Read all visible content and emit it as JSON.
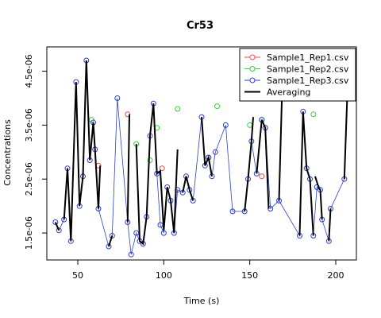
{
  "chart_data": {
    "type": "scatter",
    "title": "Cr53",
    "xlabel": "Time (s)",
    "ylabel": "Concentrations",
    "xlim": [
      32,
      212
    ],
    "ylim": [
      1e-06,
      4.95e-06
    ],
    "x_ticks": [
      50,
      100,
      150,
      200
    ],
    "x_tick_labels": [
      "50",
      "100",
      "150",
      "200"
    ],
    "y_ticks": [
      1.5e-06,
      2.5e-06,
      3.5e-06,
      4.5e-06
    ],
    "y_tick_labels": [
      "1.5e-06",
      "2.5e-06",
      "3.5e-06",
      "4.5e-06"
    ],
    "grid": false,
    "legend_position": "top-right",
    "series": [
      {
        "name": "Sample1_Rep1.csv",
        "color": "#e8474a",
        "marker": "open-circle",
        "points": [
          [
            62,
            2.75e-06
          ],
          [
            79,
            3.7e-06
          ],
          [
            99,
            2.7e-06
          ],
          [
            157,
            2.55e-06
          ],
          [
            159,
            3.45e-06
          ],
          [
            126,
            2.9e-06
          ]
        ]
      },
      {
        "name": "Sample1_Rep2.csv",
        "color": "#39d039",
        "marker": "open-circle",
        "points": [
          [
            58,
            3.6e-06
          ],
          [
            84,
            3.15e-06
          ],
          [
            92,
            2.85e-06
          ],
          [
            96,
            3.45e-06
          ],
          [
            108,
            3.8e-06
          ],
          [
            131,
            3.85e-06
          ],
          [
            150,
            3.5e-06
          ],
          [
            157,
            3.6e-06
          ],
          [
            187,
            3.7e-06
          ]
        ]
      },
      {
        "name": "Sample1_Rep3.csv",
        "color": "#2b3fd0",
        "marker": "open-circle",
        "points": [
          [
            37,
            1.7e-06
          ],
          [
            39,
            1.55e-06
          ],
          [
            42,
            1.75e-06
          ],
          [
            44,
            2.7e-06
          ],
          [
            46,
            1.35e-06
          ],
          [
            49,
            4.3e-06
          ],
          [
            51,
            2e-06
          ],
          [
            53,
            2.55e-06
          ],
          [
            55,
            4.7e-06
          ],
          [
            57,
            2.85e-06
          ],
          [
            59,
            3.55e-06
          ],
          [
            60,
            3.05e-06
          ],
          [
            62,
            1.95e-06
          ],
          [
            68,
            1.25e-06
          ],
          [
            70,
            1.45e-06
          ],
          [
            73,
            4e-06
          ],
          [
            79,
            1.7e-06
          ],
          [
            81,
            1.1e-06
          ],
          [
            84,
            1.5e-06
          ],
          [
            86,
            1.35e-06
          ],
          [
            88,
            1.3e-06
          ],
          [
            90,
            1.8e-06
          ],
          [
            92,
            3.3e-06
          ],
          [
            94,
            3.9e-06
          ],
          [
            96,
            2.6e-06
          ],
          [
            98,
            1.65e-06
          ],
          [
            100,
            1.5e-06
          ],
          [
            102,
            2.35e-06
          ],
          [
            104,
            2.1e-06
          ],
          [
            106,
            1.5e-06
          ],
          [
            108,
            2.3e-06
          ],
          [
            111,
            2.25e-06
          ],
          [
            113,
            2.55e-06
          ],
          [
            115,
            2.3e-06
          ],
          [
            117,
            2.1e-06
          ],
          [
            122,
            3.65e-06
          ],
          [
            124,
            2.75e-06
          ],
          [
            126,
            2.9e-06
          ],
          [
            128,
            2.55e-06
          ],
          [
            130,
            3e-06
          ],
          [
            136,
            3.5e-06
          ],
          [
            140,
            1.9e-06
          ],
          [
            147,
            1.9e-06
          ],
          [
            149,
            2.5e-06
          ],
          [
            151,
            3.2e-06
          ],
          [
            154,
            2.6e-06
          ],
          [
            157,
            3.6e-06
          ],
          [
            159,
            3.45e-06
          ],
          [
            162,
            1.95e-06
          ],
          [
            167,
            2.1e-06
          ],
          [
            179,
            1.45e-06
          ],
          [
            181,
            3.75e-06
          ],
          [
            183,
            2.7e-06
          ],
          [
            185,
            2.5e-06
          ],
          [
            187,
            1.45e-06
          ],
          [
            189,
            2.35e-06
          ],
          [
            191,
            2.3e-06
          ],
          [
            192,
            1.75e-06
          ],
          [
            196,
            1.35e-06
          ],
          [
            197,
            1.95e-06
          ],
          [
            205,
            2.5e-06
          ]
        ]
      },
      {
        "name": "Averaging",
        "color": "#000000",
        "marker": "line",
        "segments": [
          [
            [
              37,
              1.7e-06
            ],
            [
              39,
              1.55e-06
            ]
          ],
          [
            [
              42,
              1.75e-06
            ],
            [
              44,
              2.7e-06
            ],
            [
              46,
              1.35e-06
            ],
            [
              49,
              4.3e-06
            ],
            [
              51,
              2e-06
            ],
            [
              53,
              2.55e-06
            ],
            [
              55,
              4.7e-06
            ],
            [
              57,
              2.85e-06
            ],
            [
              59,
              3.55e-06
            ],
            [
              60,
              3.05e-06
            ],
            [
              62,
              1.95e-06
            ],
            [
              63,
              2.75e-06
            ]
          ],
          [
            [
              68,
              1.25e-06
            ],
            [
              70,
              1.45e-06
            ]
          ],
          [
            [
              79,
              1.7e-06
            ],
            [
              80,
              3.7e-06
            ]
          ],
          [
            [
              84,
              3.15e-06
            ],
            [
              86,
              1.35e-06
            ],
            [
              88,
              1.3e-06
            ],
            [
              90,
              1.8e-06
            ],
            [
              92,
              3.3e-06
            ],
            [
              94,
              3.9e-06
            ],
            [
              96,
              2.6e-06
            ],
            [
              98,
              2.65e-06
            ],
            [
              100,
              1.55e-06
            ],
            [
              102,
              2.35e-06
            ],
            [
              104,
              2.1e-06
            ],
            [
              106,
              1.5e-06
            ],
            [
              108,
              3.05e-06
            ]
          ],
          [
            [
              111,
              2.25e-06
            ],
            [
              113,
              2.55e-06
            ],
            [
              115,
              2.3e-06
            ],
            [
              117,
              2.1e-06
            ]
          ],
          [
            [
              122,
              3.65e-06
            ],
            [
              124,
              2.75e-06
            ],
            [
              126,
              2.9e-06
            ],
            [
              128,
              2.55e-06
            ]
          ],
          [
            [
              147,
              1.9e-06
            ],
            [
              149,
              2.5e-06
            ],
            [
              151,
              3.2e-06
            ],
            [
              152,
              3.65e-06
            ]
          ],
          [
            [
              154,
              2.6e-06
            ],
            [
              157,
              3.6e-06
            ],
            [
              159,
              3.45e-06
            ],
            [
              161,
              1.95e-06
            ]
          ],
          [
            [
              167,
              2.1e-06
            ],
            [
              169,
              4.35e-06
            ]
          ],
          [
            [
              179,
              1.45e-06
            ],
            [
              181,
              3.75e-06
            ],
            [
              183,
              2.7e-06
            ],
            [
              185,
              2.5e-06
            ],
            [
              187,
              1.45e-06
            ]
          ],
          [
            [
              188,
              2.55e-06
            ],
            [
              190,
              2.35e-06
            ],
            [
              191,
              2.3e-06
            ],
            [
              192,
              1.75e-06
            ]
          ],
          [
            [
              196,
              1.35e-06
            ],
            [
              197,
              1.95e-06
            ]
          ],
          [
            [
              205,
              2.5e-06
            ],
            [
              207,
              4.35e-06
            ]
          ]
        ]
      }
    ]
  }
}
